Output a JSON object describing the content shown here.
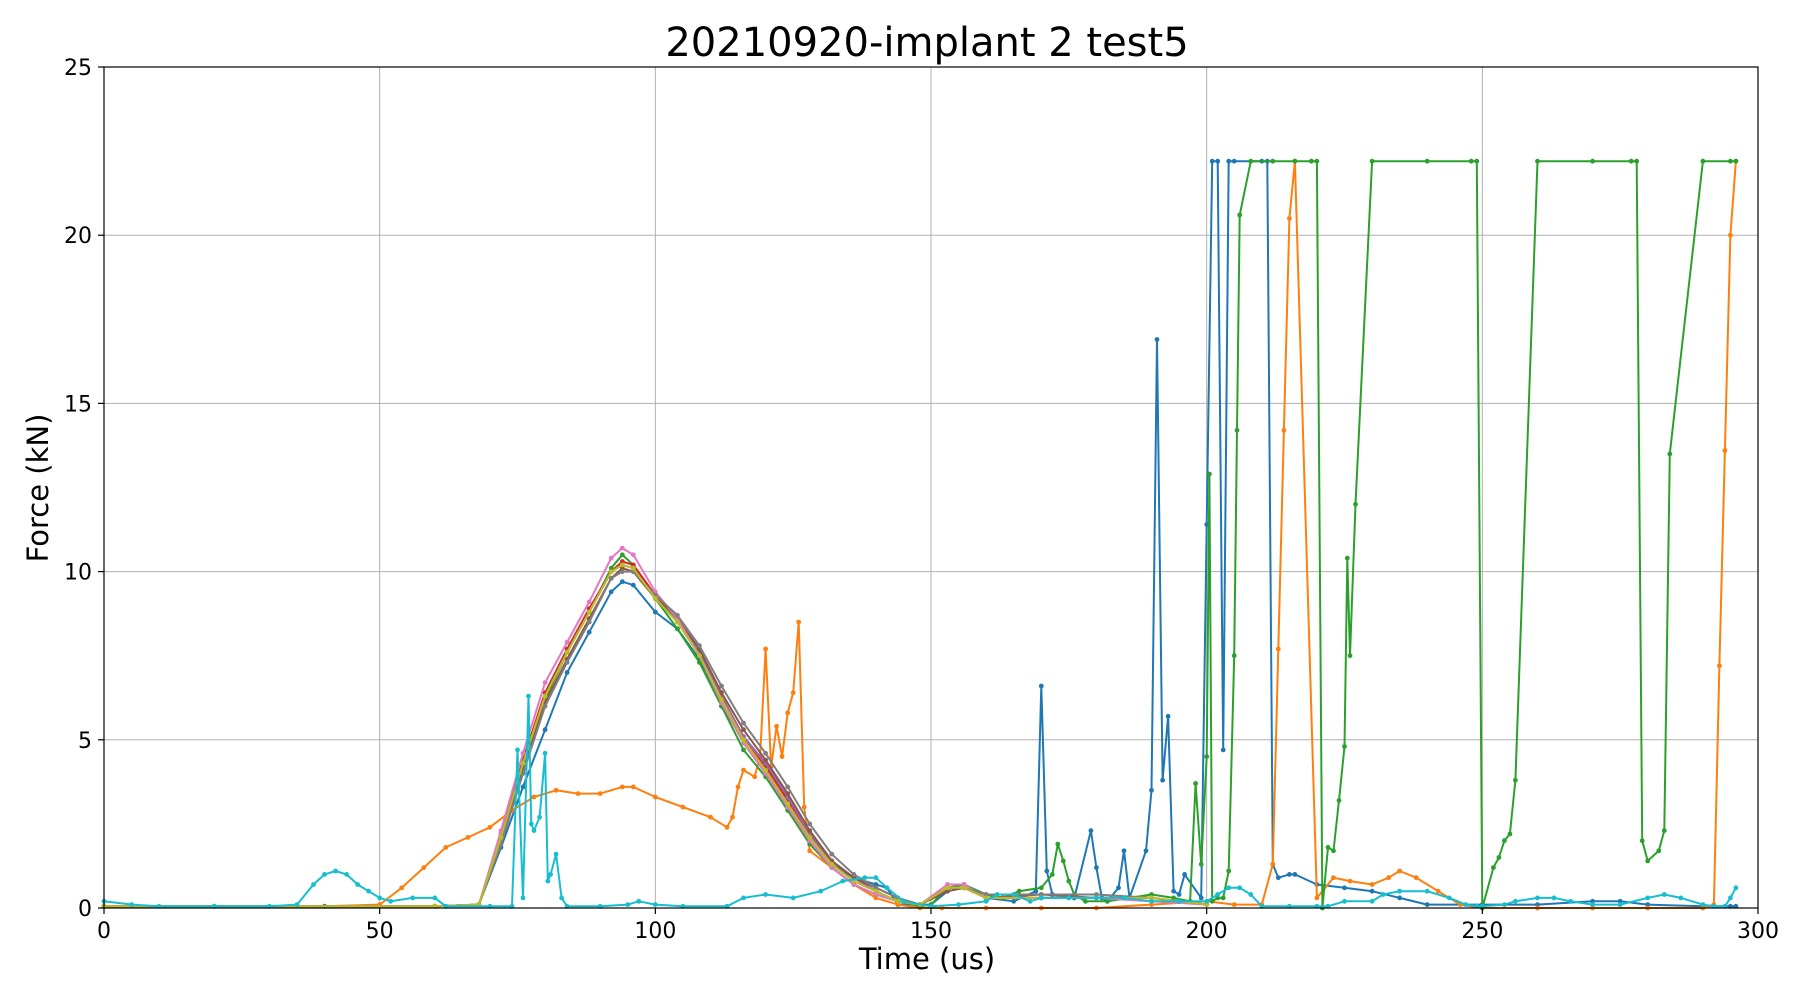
{
  "chart_data": {
    "type": "line",
    "title": "20210920-implant 2 test5",
    "xlabel": "Time (us)",
    "ylabel": "Force (kN)",
    "xlim": [
      0,
      300
    ],
    "ylim": [
      0,
      25
    ],
    "xticks": [
      0,
      50,
      100,
      150,
      200,
      250,
      300
    ],
    "yticks": [
      0,
      5,
      10,
      15,
      20,
      25
    ],
    "grid": true,
    "legend": "none",
    "series": [
      {
        "color": "#1f77b4",
        "x": [
          0,
          20,
          40,
          60,
          68,
          72,
          76,
          80,
          84,
          88,
          92,
          94,
          96,
          100,
          104,
          108,
          112,
          116,
          120,
          124,
          128,
          132,
          136,
          140,
          142,
          144,
          150,
          153,
          156,
          160,
          165,
          169,
          170,
          171,
          172,
          176,
          179,
          180,
          181,
          182,
          184,
          185,
          186,
          189,
          190,
          191,
          192,
          193,
          194,
          195,
          196,
          199,
          200,
          201,
          202,
          203,
          204,
          205,
          210,
          211,
          212,
          213,
          215,
          216,
          220,
          225,
          230,
          235,
          240,
          250,
          260,
          270,
          275,
          280,
          290,
          295,
          296
        ],
        "y": [
          0.05,
          0.05,
          0.05,
          0.05,
          0.1,
          1.8,
          3.6,
          5.3,
          7.0,
          8.2,
          9.4,
          9.7,
          9.6,
          8.8,
          8.3,
          7.4,
          6.0,
          5.0,
          4.2,
          3.3,
          2.2,
          1.3,
          0.9,
          0.7,
          0.6,
          0.1,
          0.1,
          0.5,
          0.6,
          0.3,
          0.2,
          0.5,
          6.6,
          1.1,
          0.4,
          0.3,
          2.3,
          1.2,
          0.3,
          0.2,
          0.6,
          1.7,
          0.3,
          1.7,
          3.5,
          16.9,
          3.8,
          5.7,
          0.5,
          0.4,
          1.0,
          0.3,
          11.4,
          22.2,
          22.2,
          4.7,
          22.2,
          22.2,
          22.2,
          22.2,
          1.3,
          0.9,
          1.0,
          1.0,
          0.7,
          0.6,
          0.5,
          0.3,
          0.1,
          0.1,
          0.1,
          0.2,
          0.2,
          0.1,
          0.05,
          0.05,
          0.05
        ]
      },
      {
        "color": "#ff7f0e",
        "x": [
          0,
          20,
          40,
          50,
          54,
          58,
          62,
          66,
          70,
          74,
          78,
          82,
          86,
          90,
          94,
          96,
          100,
          105,
          110,
          113,
          114,
          115,
          116,
          118,
          119,
          120,
          121,
          122,
          123,
          124,
          125,
          126,
          127,
          128,
          132,
          136,
          140,
          144,
          148,
          152,
          160,
          170,
          180,
          190,
          200,
          205,
          210,
          212,
          213,
          214,
          215,
          216,
          220,
          223,
          226,
          230,
          233,
          235,
          238,
          242,
          246,
          250,
          260,
          270,
          280,
          290,
          292,
          293,
          294,
          295,
          296
        ],
        "y": [
          0.05,
          0.05,
          0.05,
          0.1,
          0.6,
          1.2,
          1.8,
          2.1,
          2.4,
          2.9,
          3.3,
          3.5,
          3.4,
          3.4,
          3.6,
          3.6,
          3.3,
          3.0,
          2.7,
          2.4,
          2.7,
          3.6,
          4.1,
          3.9,
          4.5,
          7.7,
          4.2,
          5.4,
          4.5,
          5.8,
          6.4,
          8.5,
          3.0,
          1.7,
          1.2,
          0.7,
          0.3,
          0.1,
          0.0,
          0.0,
          0.0,
          0.0,
          0.0,
          0.1,
          0.2,
          0.1,
          0.1,
          1.3,
          7.7,
          14.2,
          20.5,
          22.2,
          0.3,
          0.9,
          0.8,
          0.7,
          0.9,
          1.1,
          0.9,
          0.5,
          0.1,
          0.0,
          0.0,
          0.0,
          0.0,
          0.0,
          0.1,
          7.2,
          13.6,
          20.0,
          22.2
        ]
      },
      {
        "color": "#2ca02c",
        "x": [
          0,
          20,
          40,
          60,
          68,
          72,
          76,
          80,
          84,
          88,
          92,
          94,
          96,
          100,
          104,
          108,
          112,
          116,
          120,
          124,
          128,
          132,
          136,
          140,
          144,
          148,
          150,
          153,
          156,
          160,
          163,
          166,
          170,
          172,
          173,
          174,
          175,
          176,
          178,
          182,
          186,
          190,
          194,
          197,
          198,
          199,
          200,
          200.5,
          201,
          202,
          203,
          204,
          205,
          205.5,
          206,
          208,
          212,
          216,
          219,
          220,
          221,
          222,
          223,
          224,
          225,
          225.5,
          226,
          227,
          230,
          240,
          248,
          249,
          250,
          252,
          253,
          254,
          255,
          256,
          260,
          270,
          277,
          278,
          279,
          280,
          282,
          283,
          284,
          290,
          295,
          296
        ],
        "y": [
          0.05,
          0.05,
          0.05,
          0.05,
          0.1,
          2.0,
          4.2,
          6.2,
          7.6,
          8.8,
          10.1,
          10.5,
          10.2,
          9.2,
          8.3,
          7.3,
          6.0,
          4.7,
          3.9,
          2.9,
          1.9,
          1.2,
          0.7,
          0.4,
          0.2,
          0.05,
          0.1,
          0.6,
          0.7,
          0.4,
          0.3,
          0.5,
          0.6,
          1.0,
          1.9,
          1.4,
          0.8,
          0.4,
          0.2,
          0.2,
          0.3,
          0.4,
          0.3,
          0.2,
          3.7,
          1.3,
          4.5,
          12.9,
          0.2,
          0.3,
          0.3,
          1.1,
          7.5,
          14.2,
          20.6,
          22.2,
          22.2,
          22.2,
          22.2,
          22.2,
          0.0,
          1.8,
          1.7,
          3.2,
          4.8,
          10.4,
          7.5,
          12.0,
          22.2,
          22.2,
          22.2,
          22.2,
          0.0,
          1.2,
          1.5,
          2.0,
          2.2,
          3.8,
          22.2,
          22.2,
          22.2,
          22.2,
          2.0,
          1.4,
          1.7,
          2.3,
          13.5,
          22.2,
          22.2,
          22.2
        ]
      },
      {
        "color": "#d62728",
        "x": [
          0,
          60,
          68,
          72,
          76,
          80,
          84,
          88,
          92,
          94,
          96,
          100,
          104,
          108,
          112,
          116,
          120,
          124,
          128,
          132,
          136,
          140,
          144,
          148,
          153,
          156,
          160,
          170,
          180,
          190,
          200
        ],
        "y": [
          0.05,
          0.05,
          0.1,
          2.2,
          4.4,
          6.4,
          7.7,
          8.9,
          10.0,
          10.3,
          10.2,
          9.3,
          8.6,
          7.6,
          6.2,
          5.0,
          4.2,
          3.2,
          2.1,
          1.3,
          0.8,
          0.5,
          0.2,
          0.1,
          0.6,
          0.6,
          0.3,
          0.3,
          0.3,
          0.3,
          0.1
        ]
      },
      {
        "color": "#9467bd",
        "x": [
          0,
          60,
          68,
          72,
          76,
          80,
          84,
          88,
          92,
          94,
          96,
          100,
          104,
          108,
          112,
          116,
          120,
          124,
          128,
          132,
          136,
          140,
          144,
          148,
          153,
          156,
          160,
          170,
          180,
          190,
          200
        ],
        "y": [
          0.05,
          0.05,
          0.1,
          2.1,
          4.3,
          6.3,
          7.6,
          8.8,
          10.0,
          10.2,
          10.1,
          9.2,
          8.5,
          7.6,
          6.3,
          5.1,
          4.3,
          3.3,
          2.2,
          1.4,
          0.9,
          0.5,
          0.2,
          0.1,
          0.6,
          0.6,
          0.3,
          0.3,
          0.3,
          0.3,
          0.1
        ]
      },
      {
        "color": "#8c564b",
        "x": [
          0,
          60,
          68,
          72,
          76,
          80,
          84,
          88,
          92,
          94,
          96,
          100,
          104,
          108,
          112,
          116,
          120,
          124,
          128,
          132,
          136,
          140,
          144,
          148,
          153,
          156,
          160,
          170,
          180,
          190,
          200
        ],
        "y": [
          0.05,
          0.05,
          0.1,
          2.0,
          4.1,
          6.1,
          7.4,
          8.6,
          9.8,
          10.1,
          10.0,
          9.2,
          8.6,
          7.7,
          6.4,
          5.3,
          4.4,
          3.4,
          2.3,
          1.4,
          0.9,
          0.6,
          0.3,
          0.1,
          0.5,
          0.6,
          0.3,
          0.4,
          0.3,
          0.3,
          0.1
        ]
      },
      {
        "color": "#e377c2",
        "x": [
          0,
          60,
          68,
          72,
          76,
          80,
          84,
          88,
          92,
          94,
          96,
          100,
          104,
          108,
          112,
          116,
          120,
          124,
          128,
          132,
          136,
          140,
          144,
          148,
          153,
          156,
          160,
          170,
          180,
          190,
          200
        ],
        "y": [
          0.05,
          0.05,
          0.1,
          2.3,
          4.6,
          6.7,
          7.9,
          9.1,
          10.4,
          10.7,
          10.5,
          9.4,
          8.6,
          7.5,
          6.1,
          4.9,
          4.0,
          3.0,
          2.0,
          1.2,
          0.7,
          0.4,
          0.2,
          0.1,
          0.7,
          0.7,
          0.3,
          0.3,
          0.3,
          0.2,
          0.1
        ]
      },
      {
        "color": "#7f7f7f",
        "x": [
          0,
          60,
          68,
          72,
          76,
          80,
          84,
          88,
          92,
          94,
          96,
          100,
          104,
          108,
          112,
          116,
          120,
          124,
          128,
          132,
          136,
          140,
          144,
          148,
          153,
          156,
          160,
          170,
          180,
          190,
          200
        ],
        "y": [
          0.05,
          0.05,
          0.1,
          1.9,
          4.0,
          6.0,
          7.3,
          8.5,
          9.8,
          10.0,
          10.0,
          9.3,
          8.7,
          7.8,
          6.6,
          5.5,
          4.6,
          3.6,
          2.5,
          1.6,
          1.0,
          0.6,
          0.3,
          0.1,
          0.6,
          0.6,
          0.4,
          0.4,
          0.4,
          0.3,
          0.1
        ]
      },
      {
        "color": "#bcbd22",
        "x": [
          0,
          60,
          68,
          72,
          76,
          80,
          84,
          88,
          92,
          94,
          96,
          100,
          104,
          108,
          112,
          116,
          120,
          124,
          128,
          132,
          136,
          140,
          144,
          148,
          153,
          156,
          160,
          170,
          180,
          190,
          200
        ],
        "y": [
          0.05,
          0.05,
          0.1,
          2.1,
          4.3,
          6.3,
          7.6,
          8.8,
          10.0,
          10.2,
          10.1,
          9.2,
          8.5,
          7.5,
          6.2,
          5.0,
          4.1,
          3.1,
          2.1,
          1.3,
          0.8,
          0.5,
          0.2,
          0.1,
          0.6,
          0.6,
          0.3,
          0.3,
          0.3,
          0.3,
          0.1
        ]
      },
      {
        "color": "#17becf",
        "x": [
          0,
          5,
          10,
          20,
          30,
          35,
          38,
          40,
          42,
          44,
          46,
          48,
          50,
          52,
          56,
          60,
          62,
          70,
          74,
          75,
          76,
          77,
          77.5,
          78,
          79,
          80,
          80.5,
          81,
          82,
          83,
          84,
          90,
          95,
          97,
          100,
          105,
          113,
          116,
          120,
          125,
          130,
          134,
          138,
          140,
          142,
          145,
          150,
          155,
          160,
          162,
          165,
          168,
          170,
          175,
          180,
          185,
          190,
          195,
          200,
          202,
          204,
          206,
          208,
          210,
          215,
          220,
          222,
          225,
          230,
          232,
          235,
          240,
          244,
          247,
          249,
          250,
          254,
          256,
          260,
          263,
          266,
          270,
          275,
          280,
          283,
          286,
          290,
          292,
          294,
          295,
          296
        ],
        "y": [
          0.2,
          0.1,
          0.05,
          0.05,
          0.05,
          0.1,
          0.7,
          1.0,
          1.1,
          1.0,
          0.7,
          0.5,
          0.3,
          0.2,
          0.3,
          0.3,
          0.05,
          0.05,
          0.05,
          4.7,
          0.3,
          6.3,
          2.5,
          2.3,
          2.7,
          4.6,
          0.8,
          1.0,
          1.6,
          0.3,
          0.05,
          0.05,
          0.1,
          0.2,
          0.1,
          0.05,
          0.05,
          0.3,
          0.4,
          0.3,
          0.5,
          0.8,
          0.9,
          0.9,
          0.6,
          0.2,
          0.05,
          0.1,
          0.2,
          0.4,
          0.4,
          0.2,
          0.3,
          0.3,
          0.3,
          0.3,
          0.2,
          0.2,
          0.2,
          0.4,
          0.6,
          0.6,
          0.4,
          0.05,
          0.05,
          0.05,
          0.05,
          0.2,
          0.2,
          0.4,
          0.5,
          0.5,
          0.3,
          0.1,
          0.05,
          0.05,
          0.1,
          0.2,
          0.3,
          0.3,
          0.2,
          0.1,
          0.1,
          0.3,
          0.4,
          0.3,
          0.1,
          0.05,
          0.05,
          0.3,
          0.6
        ]
      }
    ]
  }
}
